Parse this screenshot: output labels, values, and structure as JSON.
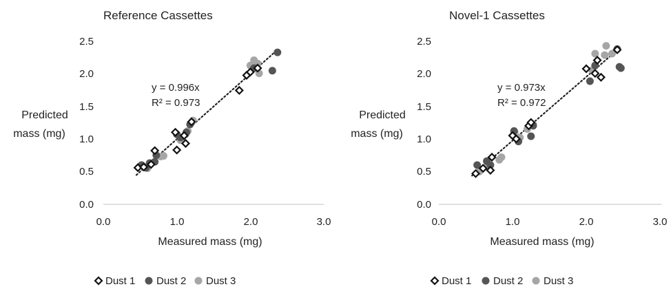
{
  "chart_data": [
    {
      "type": "scatter",
      "title": "Reference Cassettes",
      "xlabel": "Measured mass (mg)",
      "ylabel": [
        "Predicted",
        "mass (mg)"
      ],
      "xlim": [
        0,
        3
      ],
      "ylim": [
        0,
        2.5
      ],
      "x_ticks": [
        "0.0",
        "1.0",
        "2.0",
        "3.0"
      ],
      "y_ticks": [
        "0.0",
        "0.5",
        "1.0",
        "1.5",
        "2.0",
        "2.5"
      ],
      "grid": false,
      "annotation": [
        "y = 0.996x",
        "R² = 0.973"
      ],
      "trendline": {
        "slope": 0.996,
        "x_range": [
          0.45,
          2.35
        ],
        "style": "dotted"
      },
      "legend": {
        "position": "bottom-left",
        "entries": [
          "Dust 1",
          "Dust 2",
          "Dust 3"
        ]
      },
      "series": [
        {
          "name": "Dust 1",
          "marker": "diamond-open",
          "color": "#111111",
          "points": [
            [
              0.47,
              0.56
            ],
            [
              0.55,
              0.57
            ],
            [
              0.65,
              0.61
            ],
            [
              0.7,
              0.82
            ],
            [
              0.98,
              1.1
            ],
            [
              1.0,
              0.83
            ],
            [
              1.1,
              1.05
            ],
            [
              1.12,
              0.93
            ],
            [
              1.2,
              1.26
            ],
            [
              1.85,
              1.74
            ],
            [
              1.95,
              1.97
            ],
            [
              2.0,
              2.02
            ],
            [
              2.1,
              2.08
            ]
          ]
        },
        {
          "name": "Dust 2",
          "marker": "circle",
          "color": "#555555",
          "points": [
            [
              0.52,
              0.6
            ],
            [
              0.58,
              0.56
            ],
            [
              0.63,
              0.63
            ],
            [
              0.7,
              0.65
            ],
            [
              0.72,
              0.75
            ],
            [
              1.0,
              1.07
            ],
            [
              1.05,
              1.02
            ],
            [
              1.13,
              1.1
            ],
            [
              1.18,
              1.22
            ],
            [
              2.05,
              2.08
            ],
            [
              2.3,
              2.04
            ],
            [
              2.37,
              2.32
            ]
          ]
        },
        {
          "name": "Dust 3",
          "marker": "circle",
          "color": "#a6a6a6",
          "points": [
            [
              0.55,
              0.58
            ],
            [
              0.6,
              0.55
            ],
            [
              0.78,
              0.73
            ],
            [
              0.82,
              0.74
            ],
            [
              1.05,
              0.98
            ],
            [
              1.12,
              1.07
            ],
            [
              1.15,
              1.12
            ],
            [
              1.22,
              1.28
            ],
            [
              2.0,
              2.12
            ],
            [
              2.05,
              2.2
            ],
            [
              2.1,
              2.15
            ],
            [
              2.12,
              2.0
            ]
          ]
        }
      ]
    },
    {
      "type": "scatter",
      "title": "Novel-1 Cassettes",
      "xlabel": "Measured mass (mg)",
      "ylabel": [
        "Predicted",
        "mass (mg)"
      ],
      "xlim": [
        0,
        3
      ],
      "ylim": [
        0,
        2.5
      ],
      "x_ticks": [
        "0.0",
        "1.0",
        "2.0",
        "3.0"
      ],
      "y_ticks": [
        "0.0",
        "0.5",
        "1.0",
        "1.5",
        "2.0",
        "2.5"
      ],
      "grid": false,
      "annotation": [
        "y = 0.973x",
        "R² = 0.972"
      ],
      "trendline": {
        "slope": 0.973,
        "x_range": [
          0.45,
          2.45
        ],
        "style": "dotted"
      },
      "legend": {
        "position": "bottom-left",
        "entries": [
          "Dust 1",
          "Dust 2",
          "Dust 3"
        ]
      },
      "series": [
        {
          "name": "Dust 1",
          "marker": "diamond-open",
          "color": "#111111",
          "points": [
            [
              0.5,
              0.47
            ],
            [
              0.6,
              0.55
            ],
            [
              0.7,
              0.52
            ],
            [
              0.72,
              0.72
            ],
            [
              1.0,
              1.05
            ],
            [
              1.05,
              1.0
            ],
            [
              1.22,
              1.2
            ],
            [
              1.25,
              1.25
            ],
            [
              2.0,
              2.07
            ],
            [
              2.12,
              2.0
            ],
            [
              2.15,
              2.2
            ],
            [
              2.2,
              1.94
            ],
            [
              2.42,
              2.36
            ]
          ]
        },
        {
          "name": "Dust 2",
          "marker": "circle",
          "color": "#555555",
          "points": [
            [
              0.52,
              0.6
            ],
            [
              0.65,
              0.66
            ],
            [
              0.7,
              0.6
            ],
            [
              1.02,
              1.12
            ],
            [
              1.08,
              0.96
            ],
            [
              1.25,
              1.04
            ],
            [
              1.28,
              1.2
            ],
            [
              2.05,
              1.88
            ],
            [
              2.12,
              2.12
            ],
            [
              2.45,
              2.1
            ],
            [
              2.47,
              2.08
            ],
            [
              2.42,
              2.37
            ]
          ]
        },
        {
          "name": "Dust 3",
          "marker": "circle",
          "color": "#a6a6a6",
          "points": [
            [
              0.55,
              0.5
            ],
            [
              0.65,
              0.58
            ],
            [
              0.82,
              0.68
            ],
            [
              0.85,
              0.72
            ],
            [
              1.03,
              1.1
            ],
            [
              1.1,
              1.02
            ],
            [
              1.2,
              1.15
            ],
            [
              1.28,
              1.22
            ],
            [
              2.08,
              2.05
            ],
            [
              2.12,
              2.3
            ],
            [
              2.25,
              2.28
            ],
            [
              2.27,
              2.42
            ],
            [
              2.35,
              2.3
            ]
          ]
        }
      ]
    }
  ]
}
